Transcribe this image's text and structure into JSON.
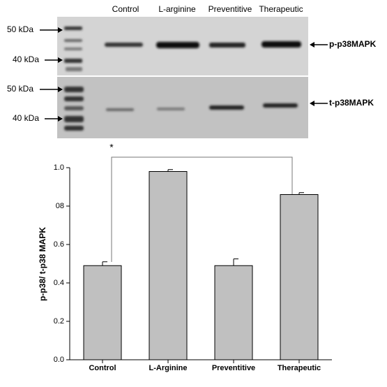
{
  "blot": {
    "lanes": [
      "Control",
      "L-arginine",
      "Preventitive",
      "Therapeutic"
    ],
    "top_markers": [
      "50 kDa",
      "40  kDa"
    ],
    "bottom_markers": [
      "50 kDa",
      "40  kDa"
    ],
    "top_label": "p-p38MAPK",
    "bottom_label": "t-p38MAPK"
  },
  "chart_data": {
    "type": "bar",
    "ylabel": "p-p38/ t-p38 MAPK",
    "categories": [
      "Control",
      "L-Arginine",
      "Preventitive",
      "Therapeutic"
    ],
    "values": [
      0.49,
      0.98,
      0.49,
      0.86
    ],
    "errors": [
      0.02,
      0.01,
      0.035,
      0.01
    ],
    "color": "#c0c0c0",
    "ylim": [
      0,
      1.0
    ],
    "yticks": [
      {
        "value": 0,
        "label": "0.0"
      },
      0.2,
      0.4,
      0.6,
      {
        "value": 0.8,
        "label": "08"
      },
      {
        "value": 1.0,
        "label": "1.0"
      }
    ],
    "annotation": "*"
  }
}
